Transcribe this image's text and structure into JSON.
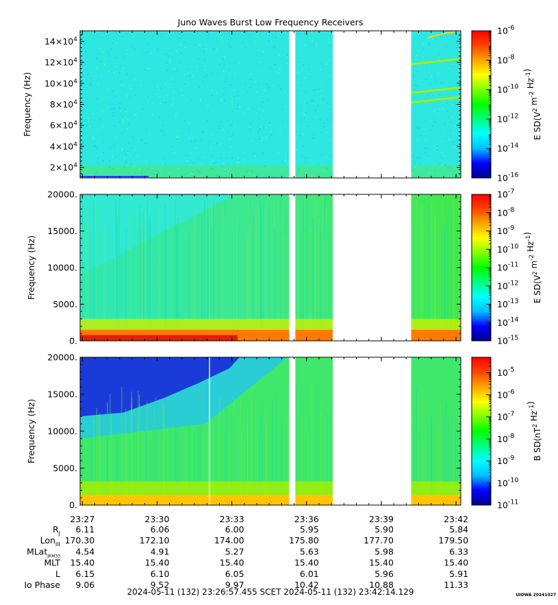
{
  "title": "Juno Waves Burst Low Frequency Receivers",
  "colors": {
    "colormap": [
      "#00008b",
      "#0000ff",
      "#00bfff",
      "#00ffff",
      "#00ff80",
      "#00ff00",
      "#80ff00",
      "#ffff00",
      "#ffa500",
      "#ff4500",
      "#ff0000"
    ],
    "data_gap": "#ffffff"
  },
  "time_axis": {
    "tick_labels": [
      "23:27",
      "23:30",
      "23:33",
      "23:36",
      "23:39",
      "23:42"
    ],
    "tick_minutes": [
      27.05,
      30.05,
      33.05,
      36.05,
      39.05,
      42.05
    ],
    "range_minutes": [
      26.96,
      42.24
    ]
  },
  "chart_data": [
    {
      "type": "heatmap",
      "title": "Juno Waves Burst Low Frequency Receivers",
      "ylabel": "Frequency (Hz)",
      "ylim": [
        10000,
        150000
      ],
      "y_ticks": [
        20000,
        40000,
        60000,
        80000,
        100000,
        120000,
        140000
      ],
      "y_tick_labels": [
        {
          "mant": "2×10",
          "exp": "4"
        },
        {
          "mant": "4×10",
          "exp": "4"
        },
        {
          "mant": "6×10",
          "exp": "4"
        },
        {
          "mant": "8×10",
          "exp": "4"
        },
        {
          "mant": "10×10",
          "exp": "4"
        },
        {
          "mant": "12×10",
          "exp": "4"
        },
        {
          "mant": "14×10",
          "exp": "4"
        }
      ],
      "colorbar": {
        "label_parts": [
          {
            "t": "E SD(V"
          },
          {
            "t": "2",
            "sup": true
          },
          {
            "t": " m"
          },
          {
            "t": "-2",
            "sup": true
          },
          {
            "t": " Hz"
          },
          {
            "t": "-1",
            "sup": true
          },
          {
            "t": ")"
          }
        ],
        "scale": "log",
        "range_exp": [
          -16,
          -6
        ],
        "ticks": [
          {
            "exp": -16,
            "label": "-16"
          },
          {
            "exp": -14,
            "label": "-14"
          },
          {
            "exp": -12,
            "label": "-12"
          },
          {
            "exp": -10,
            "label": "-10"
          },
          {
            "exp": -8,
            "label": "-8"
          },
          {
            "exp": -6,
            "label": "-6"
          }
        ]
      },
      "data_gaps_minutes": [
        [
          35.35,
          35.6
        ],
        [
          37.1,
          40.25
        ]
      ]
    },
    {
      "type": "heatmap",
      "ylabel": "Frequency (Hz)",
      "ylim": [
        0,
        20000
      ],
      "y_ticks": [
        0,
        5000,
        10000,
        15000,
        20000
      ],
      "y_tick_labels": [
        "0.",
        "5000.",
        "10000.",
        "15000.",
        "20000."
      ],
      "colorbar": {
        "label_parts": [
          {
            "t": "E SD(V"
          },
          {
            "t": "2",
            "sup": true
          },
          {
            "t": " m"
          },
          {
            "t": "-2",
            "sup": true
          },
          {
            "t": " Hz"
          },
          {
            "t": "-1",
            "sup": true
          },
          {
            "t": ")"
          }
        ],
        "scale": "log",
        "range_exp": [
          -15,
          -7
        ],
        "ticks": [
          {
            "exp": -15,
            "label": "-15"
          },
          {
            "exp": -14,
            "label": "-14"
          },
          {
            "exp": -13,
            "label": "-13"
          },
          {
            "exp": -12,
            "label": "-12"
          },
          {
            "exp": -11,
            "label": "-11"
          },
          {
            "exp": -10,
            "label": "-10"
          },
          {
            "exp": -9,
            "label": "-9"
          },
          {
            "exp": -8,
            "label": "-8"
          },
          {
            "exp": -7,
            "label": "-7"
          }
        ]
      },
      "data_gaps_minutes": [
        [
          35.35,
          35.6
        ],
        [
          37.1,
          40.25
        ]
      ]
    },
    {
      "type": "heatmap",
      "ylabel": "Frequency (Hz)",
      "ylim": [
        0,
        20000
      ],
      "y_ticks": [
        0,
        5000,
        10000,
        15000,
        20000
      ],
      "y_tick_labels": [
        "0.",
        "5000.",
        "10000.",
        "15000.",
        "20000."
      ],
      "colorbar": {
        "label_parts": [
          {
            "t": "B SD(nT"
          },
          {
            "t": "2",
            "sup": true
          },
          {
            "t": " Hz"
          },
          {
            "t": "-1",
            "sup": true
          },
          {
            "t": ")"
          }
        ],
        "scale": "log",
        "range_exp": [
          -11,
          -4.3
        ],
        "ticks": [
          {
            "exp": -11,
            "label": "-11"
          },
          {
            "exp": -10,
            "label": "-10"
          },
          {
            "exp": -9,
            "label": "-9"
          },
          {
            "exp": -8,
            "label": "-8"
          },
          {
            "exp": -7,
            "label": "-7"
          },
          {
            "exp": -6,
            "label": "-6"
          },
          {
            "exp": -5,
            "label": "-5"
          }
        ]
      },
      "data_gaps_minutes": [
        [
          35.35,
          35.6
        ],
        [
          37.1,
          40.25
        ]
      ]
    }
  ],
  "ephemeris": {
    "rows": [
      {
        "label": "R",
        "sub": "J",
        "values": [
          "6.11",
          "6.06",
          "6.00",
          "5.95",
          "5.90",
          "5.84"
        ]
      },
      {
        "label": "Lon",
        "sub": "III",
        "values": [
          "170.30",
          "172.10",
          "174.00",
          "175.80",
          "177.70",
          "179.50"
        ]
      },
      {
        "label": "MLat",
        "sub": "JRM33",
        "values": [
          "4.54",
          "4.91",
          "5.27",
          "5.63",
          "5.98",
          "6.33"
        ]
      },
      {
        "label": "MLT",
        "sub": "",
        "values": [
          "15.40",
          "15.40",
          "15.40",
          "15.40",
          "15.40",
          "15.40"
        ]
      },
      {
        "label": "L",
        "sub": "",
        "values": [
          "6.15",
          "6.10",
          "6.05",
          "6.01",
          "5.96",
          "5.91"
        ]
      },
      {
        "label": "Io Phase",
        "sub": "",
        "values": [
          "9.06",
          "9.52",
          "9.97",
          "10.42",
          "10.88",
          "11.33"
        ]
      }
    ]
  },
  "footer": {
    "time_range": "2024-05-11 (132) 23:26:57.455    SCET    2024-05-11 (132) 23:42:14.129",
    "credit": "UIOWA 20241027"
  }
}
